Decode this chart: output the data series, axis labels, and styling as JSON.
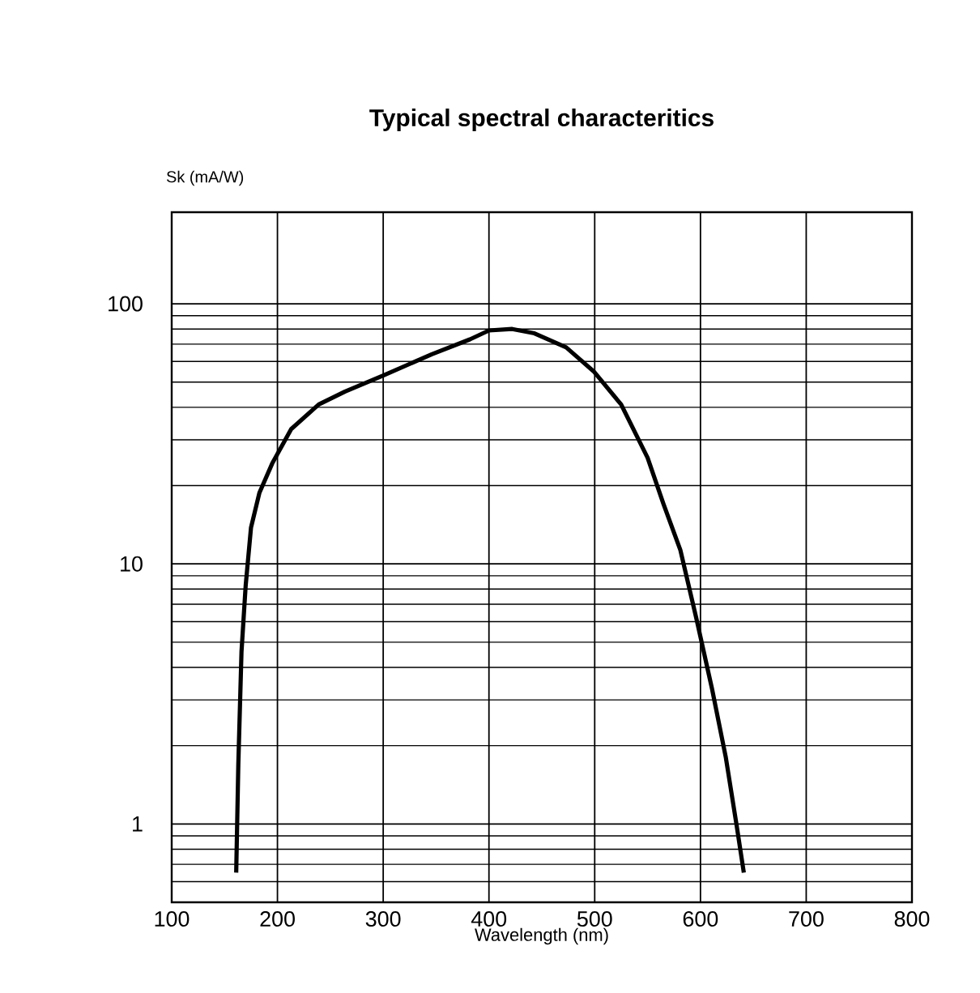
{
  "chart_data": {
    "type": "line",
    "title": "Typical spectral characteritics",
    "ylabel": "Sk (mA/W)",
    "xlabel": "Wavelength (nm)",
    "x": [
      161,
      163,
      166,
      170,
      175,
      183,
      195,
      213,
      239,
      264,
      300,
      346,
      382,
      400,
      422,
      443,
      473,
      499,
      525,
      550,
      565,
      581,
      596,
      611,
      624,
      634,
      641
    ],
    "series": [
      {
        "color": "#000000",
        "values": [
          0.65,
          1.7,
          4.6,
          8.3,
          13.8,
          18.8,
          24.3,
          33,
          41,
          46,
          53,
          64,
          73,
          79,
          80,
          77,
          68,
          55,
          41,
          25.6,
          17,
          11.3,
          6.2,
          3.3,
          1.8,
          1.0,
          0.65
        ]
      }
    ],
    "xlim": [
      100,
      800
    ],
    "xticks": [
      100,
      200,
      300,
      400,
      500,
      600,
      700,
      800
    ],
    "ylim": [
      0.5,
      225
    ],
    "yticks": [
      1,
      10,
      100
    ],
    "log": "y",
    "grid": true,
    "marker": "none",
    "line_style": "solid"
  }
}
